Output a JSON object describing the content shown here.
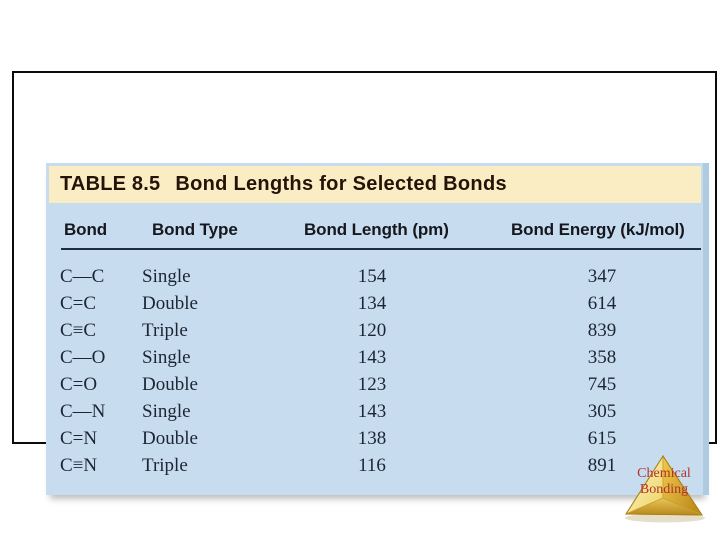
{
  "table": {
    "title_label": "TABLE 8.5",
    "title_text": "Bond Lengths for Selected Bonds",
    "columns": [
      "Bond",
      "Bond Type",
      "Bond Length (pm)",
      "Bond Energy (kJ/mol)"
    ],
    "rows": [
      {
        "bond": "C—C",
        "type": "Single",
        "length": "154",
        "energy": "347"
      },
      {
        "bond": "C=C",
        "type": "Double",
        "length": "134",
        "energy": "614"
      },
      {
        "bond": "C≡C",
        "type": "Triple",
        "length": "120",
        "energy": "839"
      },
      {
        "bond": "C—O",
        "type": "Single",
        "length": "143",
        "energy": "358"
      },
      {
        "bond": "C=O",
        "type": "Double",
        "length": "123",
        "energy": "745"
      },
      {
        "bond": "C—N",
        "type": "Single",
        "length": "143",
        "energy": "305"
      },
      {
        "bond": "C=N",
        "type": "Double",
        "length": "138",
        "energy": "615"
      },
      {
        "bond": "C≡N",
        "type": "Triple",
        "length": "116",
        "energy": "891"
      }
    ]
  },
  "logo": {
    "line1": "Chemical",
    "line2": "Bonding"
  },
  "colors": {
    "table_body_bg": "#c7ddef",
    "table_title_bg": "#faedc4",
    "table_text": "#1d2535",
    "header_rule": "#1d2b45",
    "logo_text": "#b3322a",
    "logo_gold": "#d9a62e"
  }
}
